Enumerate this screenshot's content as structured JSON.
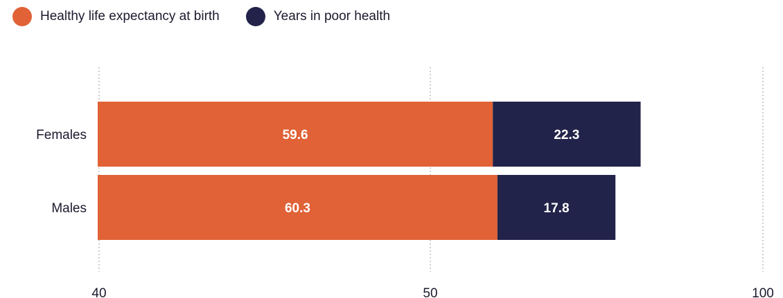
{
  "chart_data": {
    "type": "bar",
    "orientation": "horizontal",
    "stacked": true,
    "categories": [
      "Females",
      "Males"
    ],
    "series": [
      {
        "name": "Healthy life expectancy at birth",
        "color": "#E06236",
        "values": [
          59.6,
          60.3
        ]
      },
      {
        "name": "Years in poor health",
        "color": "#22234A",
        "values": [
          22.3,
          17.8
        ]
      }
    ],
    "x_ticks": [
      40,
      50,
      100
    ],
    "x_scale_note": "piecewise-linear: 40-50 first half, 50-100 second half",
    "grid": true,
    "legend": "top-left",
    "title": "",
    "xlabel": "",
    "ylabel": ""
  }
}
